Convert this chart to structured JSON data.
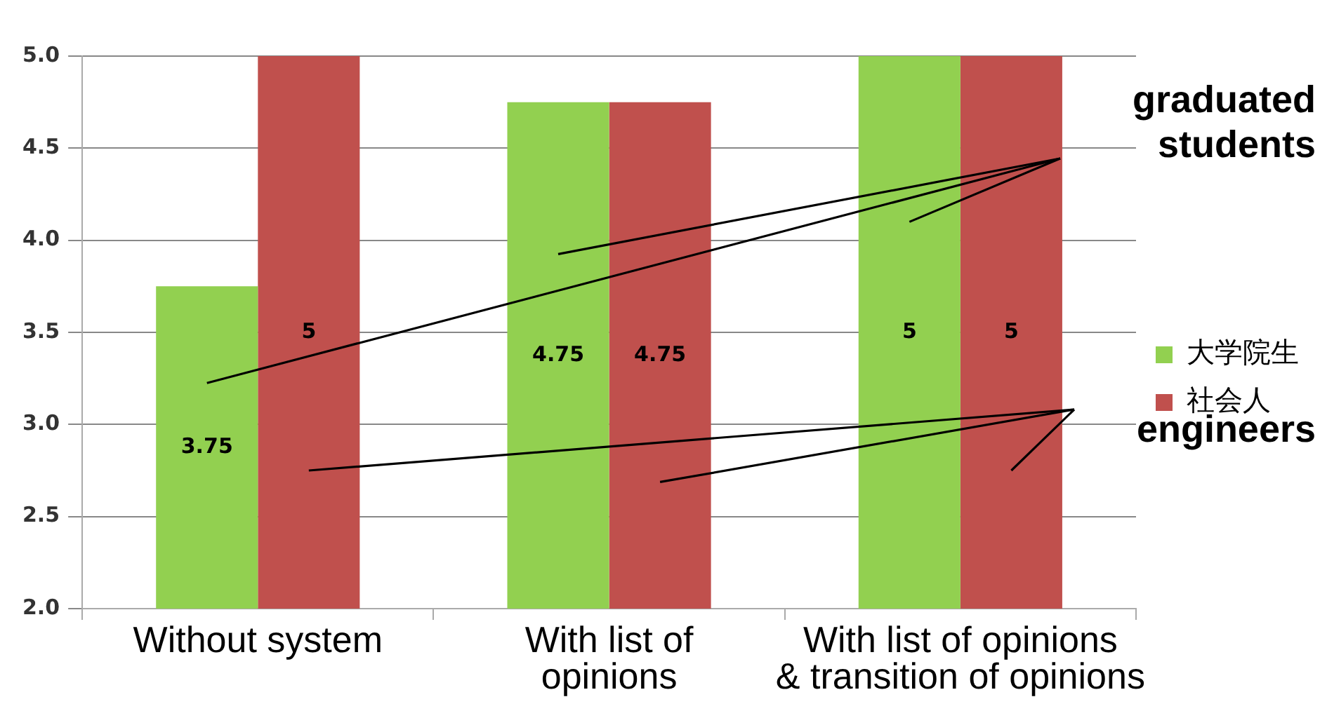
{
  "chart_data": {
    "type": "bar",
    "categories": [
      "Without system",
      "With list of\nopinions",
      "With list of opinions\n& transition of opinions"
    ],
    "series": [
      {
        "name": "大学院生",
        "color": "#92d050",
        "values": [
          3.75,
          4.75,
          5
        ]
      },
      {
        "name": "社会人",
        "color": "#c0504d",
        "values": [
          5,
          4.75,
          5
        ]
      }
    ],
    "ylim": [
      2,
      5
    ],
    "yticks": [
      {
        "value": 2,
        "label": "2.0"
      },
      {
        "value": 2.5,
        "label": "2.5"
      },
      {
        "value": 3,
        "label": "3.0"
      },
      {
        "value": 3.5,
        "label": "3.5"
      },
      {
        "value": 4,
        "label": "4.0"
      },
      {
        "value": 4.5,
        "label": "4.5"
      },
      {
        "value": 5,
        "label": "5.0"
      }
    ],
    "grid": "y",
    "legend": "right",
    "data_labels": true,
    "annotations": [
      "graduated\nstudents",
      "engineers"
    ]
  }
}
